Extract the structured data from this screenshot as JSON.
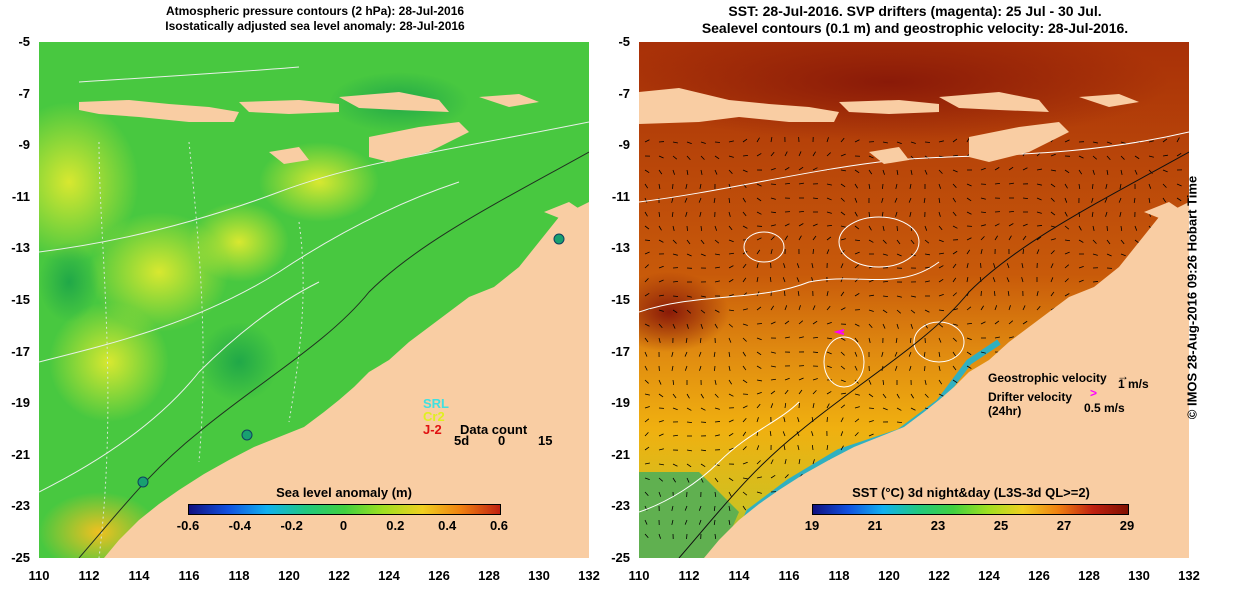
{
  "left_panel": {
    "title_line1": "Atmospheric pressure contours (2 hPa): 28-Jul-2016",
    "title_line2": "Isostatically adjusted sea level anomaly: 28-Jul-2016",
    "legend": {
      "srl": "SRL",
      "cr2": "Cr2",
      "j2": "J-2",
      "data_count": "Data count",
      "d5": "5d",
      "zero": "0",
      "fifteen": "15"
    },
    "colorbar": {
      "title": "Sea level anomaly (m)",
      "ticks": [
        "-0.6",
        "-0.4",
        "-0.2",
        "0",
        "0.2",
        "0.4",
        "0.6"
      ]
    }
  },
  "right_panel": {
    "title_line1": "SST: 28-Jul-2016. SVP drifters (magenta): 25 Jul - 30 Jul.",
    "title_line2": "Sealevel contours (0.1 m) and geostrophic velocity: 28-Jul-2016.",
    "geostrophic_label": "Geostrophic velocity",
    "geostrophic_scale": "1 m/s",
    "drifter_label": "Drifter velocity",
    "drifter_label2": "(24hr)",
    "drifter_scale": "0.5 m/s",
    "colorbar": {
      "title": "SST (°C) 3d night&day (L3S-3d QL>=2)",
      "ticks": [
        "19",
        "21",
        "23",
        "25",
        "27",
        "29"
      ]
    }
  },
  "axes": {
    "y_ticks": [
      "-5",
      "-7",
      "-9",
      "-11",
      "-13",
      "-15",
      "-17",
      "-19",
      "-21",
      "-23",
      "-25"
    ],
    "x_ticks": [
      "110",
      "112",
      "114",
      "116",
      "118",
      "120",
      "122",
      "124",
      "126",
      "128",
      "130",
      "132"
    ]
  },
  "credit": "© IMOS 28-Aug-2016 09:26 Hobart Time",
  "colors": {
    "land": "#f9cda3",
    "sla_green": "#40c040",
    "sst_orange": "#c85a0a"
  }
}
